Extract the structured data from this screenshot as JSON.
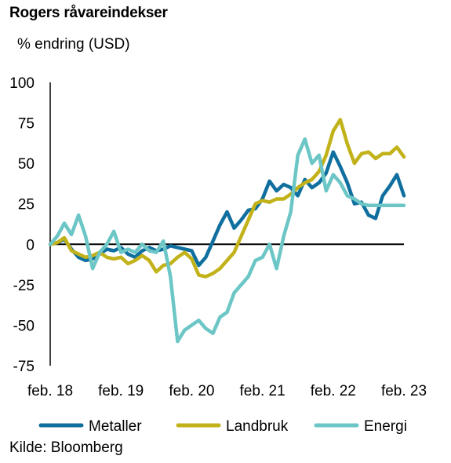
{
  "title": "Rogers råvareindekser",
  "subtitle": "% endring (USD)",
  "source": "Kilde: Bloomberg",
  "colors": {
    "Metaller": "#0f6f9e",
    "Landbruk": "#c2b21a",
    "Energi": "#6cc6c6"
  },
  "chart_data": {
    "type": "line",
    "title": "Rogers råvareindekser",
    "ylabel": "% endring (USD)",
    "xlabel": "",
    "ylim": [
      -75,
      100
    ],
    "xlim": [
      2018.0,
      2023.0
    ],
    "yticks": [
      100,
      75,
      50,
      25,
      0,
      -25,
      -50,
      -75
    ],
    "ytick_labels": [
      "100",
      "75",
      "50",
      "25",
      "0",
      "-25",
      "-50",
      "-75"
    ],
    "xticks": [
      2018.0,
      2019.0,
      2020.0,
      2021.0,
      2022.0,
      2023.0
    ],
    "xtick_labels": [
      "feb. 18",
      "feb. 19",
      "feb. 20",
      "feb. 21",
      "feb. 22",
      "feb. 23"
    ],
    "grid": false,
    "legend_position": "bottom",
    "series": [
      {
        "name": "Metaller",
        "x": [
          2018.0,
          2018.1,
          2018.2,
          2018.3,
          2018.4,
          2018.5,
          2018.6,
          2018.7,
          2018.8,
          2018.9,
          2019.0,
          2019.1,
          2019.2,
          2019.3,
          2019.4,
          2019.5,
          2019.6,
          2019.7,
          2019.8,
          2019.9,
          2020.0,
          2020.1,
          2020.2,
          2020.3,
          2020.4,
          2020.5,
          2020.6,
          2020.7,
          2020.8,
          2020.9,
          2021.0,
          2021.1,
          2021.2,
          2021.3,
          2021.4,
          2021.5,
          2021.6,
          2021.7,
          2021.8,
          2021.9,
          2022.0,
          2022.1,
          2022.2,
          2022.3,
          2022.4,
          2022.5,
          2022.6,
          2022.7,
          2022.8,
          2022.9,
          2023.0
        ],
        "values": [
          0,
          1,
          3,
          -3,
          -8,
          -10,
          -9,
          -6,
          -3,
          -4,
          -2,
          -6,
          -8,
          -4,
          -2,
          -4,
          -3,
          -1,
          -2,
          -3,
          -4,
          -13,
          -8,
          2,
          12,
          20,
          10,
          15,
          21,
          22,
          28,
          39,
          33,
          37,
          35,
          30,
          40,
          35,
          38,
          44,
          57,
          48,
          38,
          25,
          26,
          18,
          16,
          30,
          36,
          43,
          30
        ]
      },
      {
        "name": "Landbruk",
        "x": [
          2018.0,
          2018.1,
          2018.2,
          2018.3,
          2018.4,
          2018.5,
          2018.6,
          2018.7,
          2018.8,
          2018.9,
          2019.0,
          2019.1,
          2019.2,
          2019.3,
          2019.4,
          2019.5,
          2019.6,
          2019.7,
          2019.8,
          2019.9,
          2020.0,
          2020.1,
          2020.2,
          2020.3,
          2020.4,
          2020.5,
          2020.6,
          2020.7,
          2020.8,
          2020.9,
          2021.0,
          2021.1,
          2021.2,
          2021.3,
          2021.4,
          2021.5,
          2021.6,
          2021.7,
          2021.8,
          2021.9,
          2022.0,
          2022.1,
          2022.2,
          2022.3,
          2022.4,
          2022.5,
          2022.6,
          2022.7,
          2022.8,
          2022.9,
          2023.0
        ],
        "values": [
          0,
          1,
          4,
          -4,
          -6,
          -8,
          -7,
          -5,
          -8,
          -9,
          -8,
          -12,
          -10,
          -7,
          -10,
          -17,
          -13,
          -12,
          -8,
          -5,
          -9,
          -19,
          -20,
          -18,
          -15,
          -10,
          -5,
          5,
          15,
          25,
          27,
          26,
          28,
          28,
          31,
          35,
          38,
          40,
          45,
          55,
          70,
          77,
          62,
          50,
          56,
          57,
          53,
          56,
          56,
          60,
          54
        ]
      },
      {
        "name": "Energi",
        "x": [
          2018.0,
          2018.1,
          2018.2,
          2018.3,
          2018.4,
          2018.5,
          2018.6,
          2018.7,
          2018.8,
          2018.9,
          2019.0,
          2019.1,
          2019.2,
          2019.3,
          2019.4,
          2019.5,
          2019.6,
          2019.7,
          2019.8,
          2019.9,
          2020.0,
          2020.1,
          2020.2,
          2020.3,
          2020.4,
          2020.5,
          2020.6,
          2020.7,
          2020.8,
          2020.9,
          2021.0,
          2021.1,
          2021.2,
          2021.3,
          2021.4,
          2021.5,
          2021.6,
          2021.7,
          2021.8,
          2021.9,
          2022.0,
          2022.1,
          2022.2,
          2022.3,
          2022.4,
          2022.5,
          2022.6,
          2022.7,
          2022.8,
          2022.9,
          2023.0
        ],
        "values": [
          0,
          5,
          13,
          6,
          18,
          5,
          -15,
          -5,
          0,
          8,
          -5,
          -3,
          -5,
          0,
          -4,
          -5,
          2,
          -20,
          -60,
          -53,
          -50,
          -47,
          -52,
          -55,
          -45,
          -42,
          -30,
          -25,
          -20,
          -10,
          -8,
          0,
          -15,
          5,
          20,
          55,
          65,
          50,
          55,
          33,
          43,
          38,
          30,
          28,
          25,
          24,
          24,
          24,
          24,
          24,
          24
        ]
      }
    ]
  }
}
